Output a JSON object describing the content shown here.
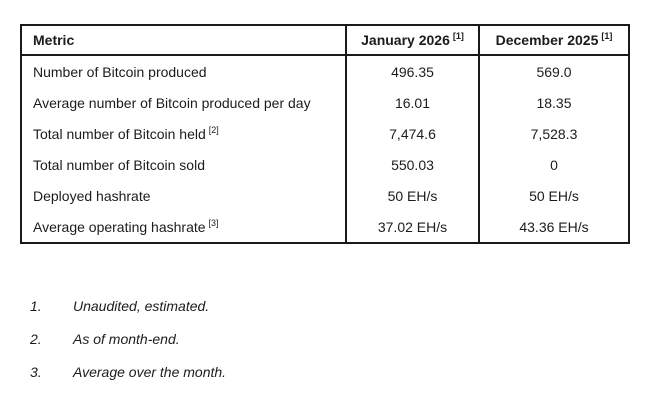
{
  "table": {
    "header": {
      "metric": "Metric",
      "jan_label": "January 2026",
      "jan_sup": "[1]",
      "dec_label": "December 2025",
      "dec_sup": "[1]"
    },
    "rows": [
      {
        "metric": "Number of Bitcoin produced",
        "sup": "",
        "jan": "496.35",
        "dec": "569.0"
      },
      {
        "metric": "Average number of Bitcoin produced per day",
        "sup": "",
        "jan": "16.01",
        "dec": "18.35"
      },
      {
        "metric": "Total number of Bitcoin held",
        "sup": "[2]",
        "jan": "7,474.6",
        "dec": "7,528.3"
      },
      {
        "metric": "Total number of Bitcoin sold",
        "sup": "",
        "jan": "550.03",
        "dec": "0"
      },
      {
        "metric": "Deployed hashrate",
        "sup": "",
        "jan": "50 EH/s",
        "dec": "50 EH/s"
      },
      {
        "metric": "Average operating hashrate",
        "sup": "[3]",
        "jan": "37.02 EH/s",
        "dec": "43.36 EH/s"
      }
    ]
  },
  "footnotes": [
    {
      "num": "1.",
      "text": "Unaudited, estimated."
    },
    {
      "num": "2.",
      "text": "As of month-end."
    },
    {
      "num": "3.",
      "text": "Average over the month."
    }
  ],
  "colors": {
    "border": "#1a1a1a",
    "text": "#1c1c1c",
    "background": "#ffffff"
  }
}
